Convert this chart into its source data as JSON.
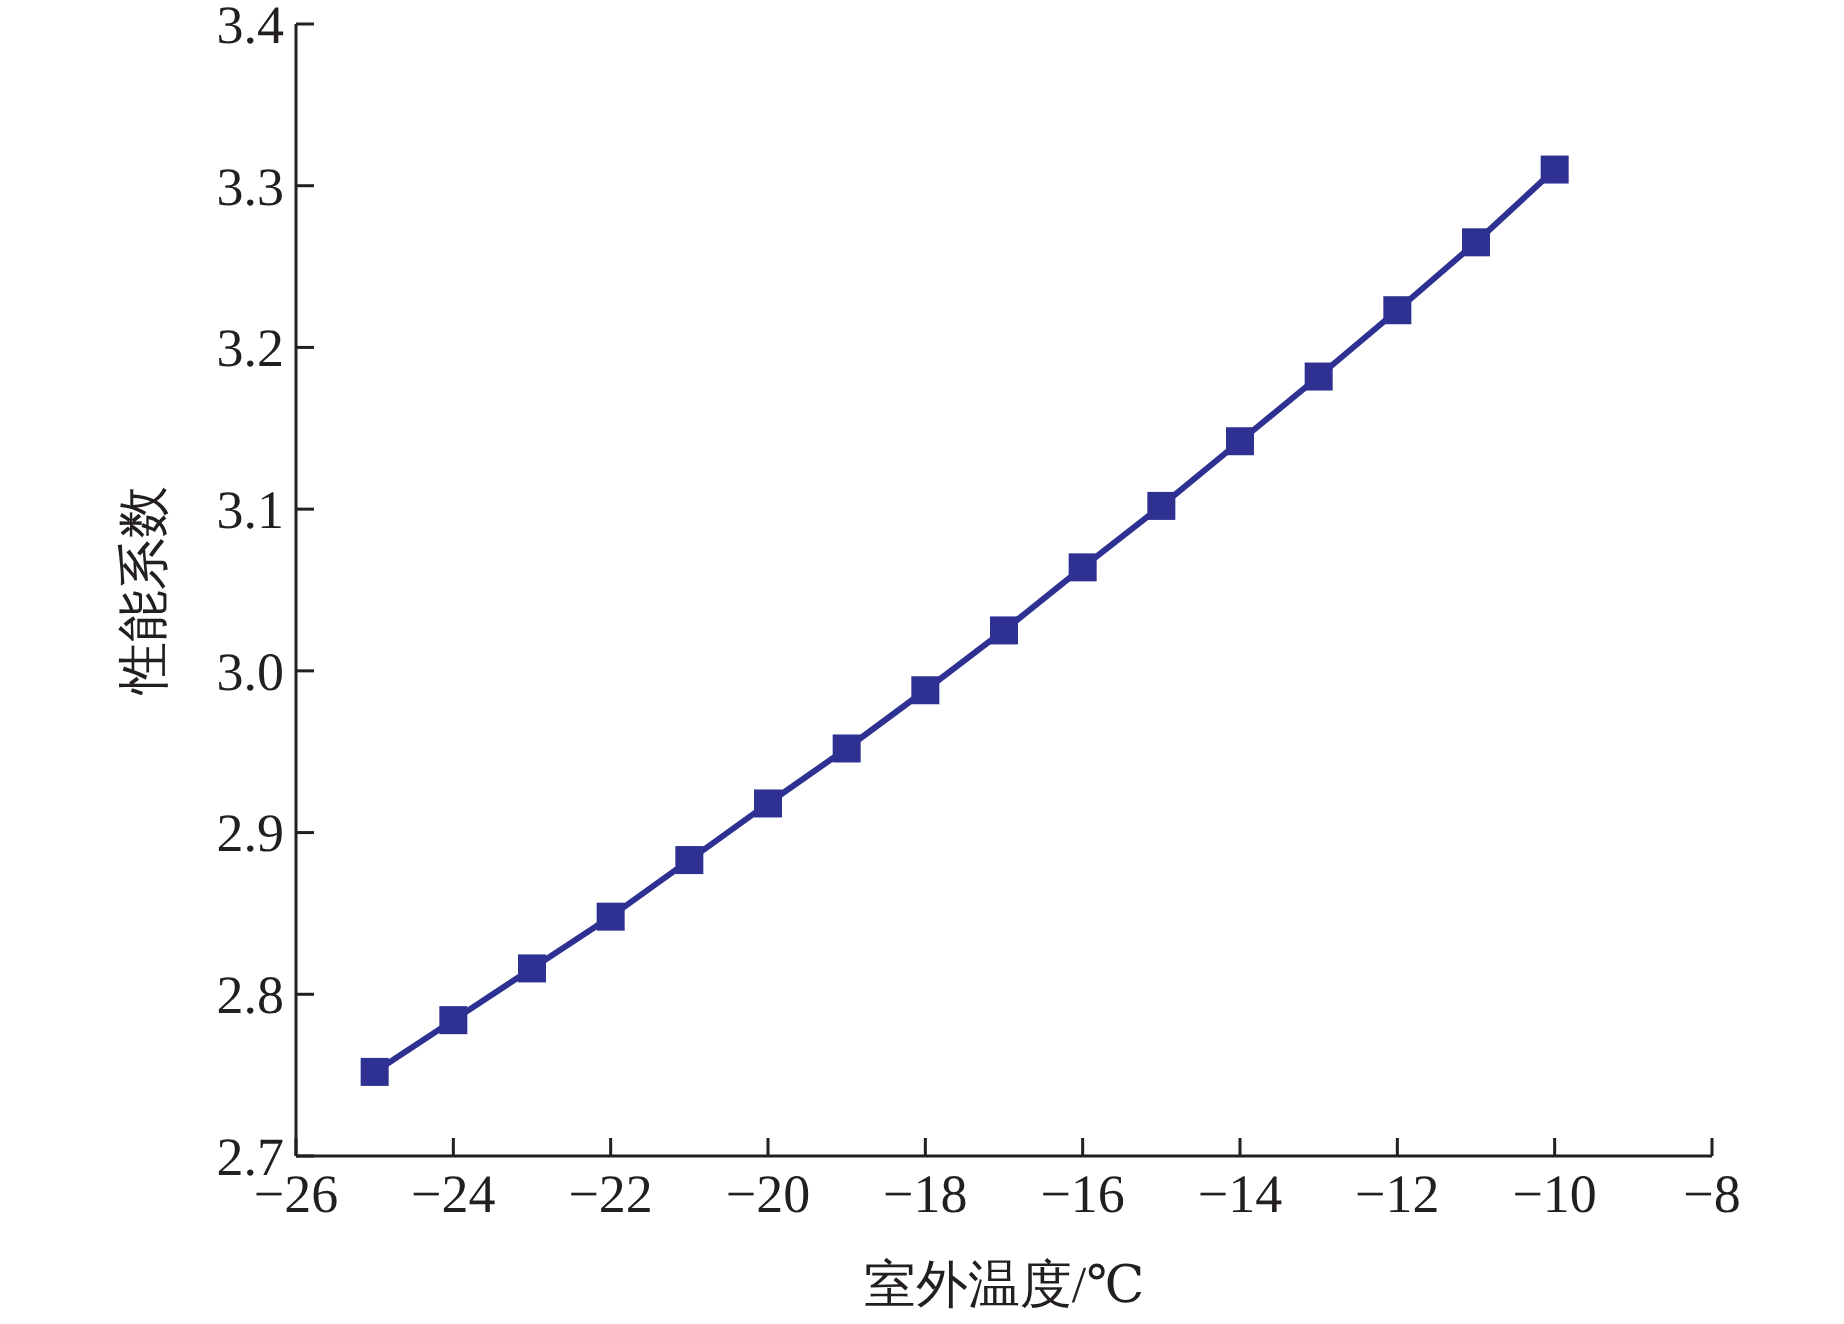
{
  "chart_data": {
    "type": "line",
    "xlabel": "室外温度/℃",
    "ylabel": "性能系数",
    "x": [
      -25,
      -24,
      -23,
      -22,
      -21,
      -20,
      -19,
      -18,
      -17,
      -16,
      -15,
      -14,
      -13,
      -12,
      -11,
      -10
    ],
    "series": [
      {
        "color": "#2e3192",
        "values": [
          2.752,
          2.784,
          2.816,
          2.848,
          2.883,
          2.918,
          2.952,
          2.988,
          3.025,
          3.064,
          3.102,
          3.142,
          3.182,
          3.223,
          3.265,
          3.31
        ]
      }
    ],
    "xlim": [
      -26,
      -8
    ],
    "xticks": [
      -26,
      -24,
      -22,
      -20,
      -18,
      -16,
      -14,
      -12,
      -10,
      -8
    ],
    "ylim": [
      2.7,
      3.4
    ],
    "yticks": [
      2.7,
      2.8,
      2.9,
      {
        "value": 3,
        "label": "3.0"
      },
      3.1,
      3.2,
      3.3,
      3.4
    ],
    "grid": false,
    "marker": "square",
    "line_style": "solid"
  }
}
